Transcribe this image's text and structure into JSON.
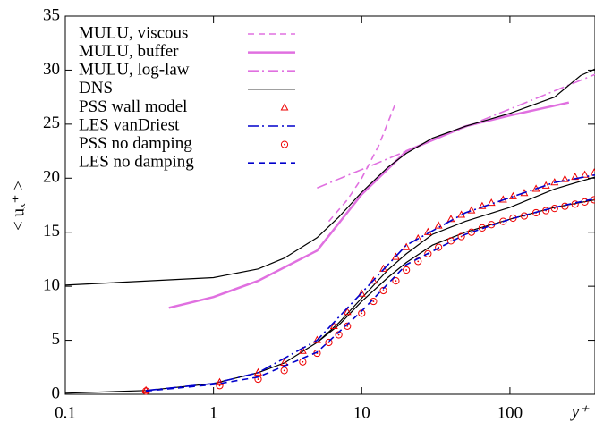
{
  "chart_data": {
    "type": "line",
    "xlabel": "y⁺",
    "ylabel": "< uₓ⁺ >",
    "xscale": "log",
    "xlim": [
      0.1,
      375
    ],
    "ylim": [
      0,
      35
    ],
    "xticks": [
      0.1,
      1,
      10,
      100
    ],
    "yticks": [
      0,
      5,
      10,
      15,
      20,
      25,
      30,
      35
    ],
    "grid": false,
    "legend": "upper left",
    "series": [
      {
        "name": "MULU, viscous",
        "color": "#e070e0",
        "style": "dashed",
        "marker": "none",
        "x": [
          6,
          8,
          10,
          13,
          17
        ],
        "values": [
          16,
          18,
          20,
          23,
          27
        ]
      },
      {
        "name": "MULU, buffer",
        "color": "#e070e0",
        "style": "solid-thick",
        "marker": "none",
        "x": [
          0.5,
          1,
          2,
          5,
          10,
          20,
          50,
          100,
          250
        ],
        "values": [
          8,
          9,
          10.5,
          13.3,
          18.5,
          22.5,
          24.8,
          25.8,
          27
        ]
      },
      {
        "name": "MULU, log-law",
        "color": "#e070e0",
        "style": "dashdot",
        "marker": "none",
        "x": [
          5,
          10,
          30,
          100,
          375
        ],
        "values": [
          19.1,
          20.8,
          23.5,
          26.4,
          29.6
        ]
      },
      {
        "name": "DNS",
        "color": "#000000",
        "style": "solid",
        "marker": "none",
        "x": [
          0.1,
          1,
          2,
          3,
          5,
          7,
          10,
          15,
          20,
          30,
          50,
          100,
          200,
          300,
          375,
          null,
          0.1,
          0.35,
          1,
          2,
          3,
          5,
          7,
          10,
          15,
          20,
          30,
          50,
          100,
          200,
          375,
          null,
          0.1,
          0.35,
          1,
          2,
          3,
          5,
          7,
          10,
          15,
          20,
          30,
          50,
          100,
          200,
          375
        ],
        "values": [
          10.1,
          10.8,
          11.6,
          12.6,
          14.5,
          16.4,
          18.7,
          21,
          22.3,
          23.7,
          24.8,
          26,
          27.5,
          29.5,
          30.1,
          null,
          0.1,
          0.35,
          1,
          2,
          2.9,
          4.8,
          6.6,
          8.9,
          11.5,
          13,
          14.8,
          16,
          17.3,
          19,
          20.1,
          null,
          0.1,
          0.35,
          1,
          2,
          2.9,
          4.8,
          6.4,
          8.6,
          10.8,
          12.2,
          13.8,
          15,
          16.2,
          17.3,
          18
        ]
      },
      {
        "name": "PSS wall model",
        "color": "#ee0000",
        "style": "none",
        "marker": "triangle",
        "x": [
          0.35,
          1.1,
          2,
          3,
          4,
          5,
          6.5,
          8,
          10,
          12,
          14,
          17,
          20,
          24,
          28,
          33,
          40,
          47,
          55,
          65,
          75,
          90,
          105,
          125,
          150,
          175,
          200,
          235,
          275,
          320,
          370
        ],
        "values": [
          0.35,
          1.1,
          2,
          2.9,
          4,
          5,
          6.3,
          7.6,
          9.3,
          10.5,
          11.6,
          12.7,
          13.6,
          14.4,
          15,
          15.6,
          16.2,
          16.6,
          17,
          17.4,
          17.7,
          18,
          18.3,
          18.6,
          19,
          19.3,
          19.6,
          19.9,
          20.1,
          20.3,
          20.5
        ]
      },
      {
        "name": "LES vanDriest",
        "color": "#0000cc",
        "style": "dashdot",
        "marker": "none",
        "x": [
          0.35,
          1,
          2,
          5,
          10,
          20,
          50,
          100,
          200,
          375
        ],
        "values": [
          0.35,
          1,
          2,
          5,
          9.4,
          13.8,
          16.8,
          18.2,
          19.6,
          20.3
        ]
      },
      {
        "name": "PSS no damping",
        "color": "#ee0000",
        "style": "none",
        "marker": "circle",
        "x": [
          0.35,
          1.1,
          2,
          3,
          4,
          5,
          6,
          7,
          8,
          10,
          12,
          14,
          17,
          20,
          24,
          28,
          33,
          40,
          47,
          55,
          65,
          75,
          90,
          105,
          125,
          150,
          175,
          200,
          235,
          275,
          320,
          370
        ],
        "values": [
          0.3,
          0.8,
          1.4,
          2.2,
          3,
          3.8,
          4.8,
          5.5,
          6.3,
          7.5,
          8.6,
          9.6,
          10.5,
          11.5,
          12.3,
          13,
          13.6,
          14.2,
          14.6,
          15,
          15.4,
          15.7,
          16,
          16.3,
          16.5,
          16.8,
          17,
          17.2,
          17.4,
          17.6,
          17.8,
          18
        ]
      },
      {
        "name": "LES no damping",
        "color": "#0000cc",
        "style": "dashed",
        "marker": "none",
        "x": [
          0.35,
          1,
          2,
          5,
          10,
          20,
          50,
          100,
          200,
          375
        ],
        "values": [
          0.3,
          0.9,
          1.6,
          3.9,
          7.7,
          12,
          14.8,
          16.2,
          17.3,
          18.1
        ]
      }
    ]
  }
}
